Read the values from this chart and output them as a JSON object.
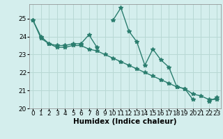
{
  "title": "",
  "xlabel": "Humidex (Indice chaleur)",
  "ylabel": "",
  "background_color": "#d4eeed",
  "grid_color": "#b8d8d4",
  "line_color": "#2a7d6e",
  "x_values_line1": [
    0,
    1,
    2,
    3,
    4,
    5,
    6,
    7,
    8,
    9,
    10,
    11,
    12,
    13,
    14,
    15,
    16,
    17,
    18,
    19,
    20,
    22,
    23
  ],
  "y_values_line1": [
    24.9,
    23.9,
    23.6,
    23.5,
    23.5,
    23.6,
    23.6,
    24.1,
    23.4,
    24.9,
    25.6,
    24.3,
    23.7,
    22.4,
    23.3,
    22.7,
    22.3,
    21.2,
    21.1,
    20.5,
    20.4,
    20.6,
    null
  ],
  "x_values_line2": [
    0,
    1,
    2,
    3,
    4,
    5,
    6,
    7,
    8,
    9,
    10,
    11,
    12,
    13,
    14,
    15,
    16,
    17,
    18,
    19,
    20,
    21,
    22,
    23
  ],
  "y_values_line2": [
    24.9,
    24.0,
    23.6,
    23.4,
    23.4,
    23.5,
    23.5,
    23.3,
    23.2,
    23.0,
    22.8,
    22.6,
    22.4,
    22.2,
    22.0,
    21.8,
    21.6,
    21.4,
    21.2,
    21.1,
    20.8,
    20.7,
    20.5,
    20.5
  ],
  "ylim": [
    20.0,
    25.8
  ],
  "xlim": [
    -0.5,
    23.5
  ],
  "yticks": [
    20,
    21,
    22,
    23,
    24,
    25
  ],
  "xticks": [
    0,
    1,
    2,
    3,
    4,
    5,
    6,
    7,
    8,
    9,
    10,
    11,
    12,
    13,
    14,
    15,
    16,
    17,
    18,
    19,
    20,
    21,
    22,
    23
  ],
  "marker": "*",
  "marker_size": 4,
  "line_width": 1.0,
  "tick_fontsize": 6.5,
  "xlabel_fontsize": 7.5
}
